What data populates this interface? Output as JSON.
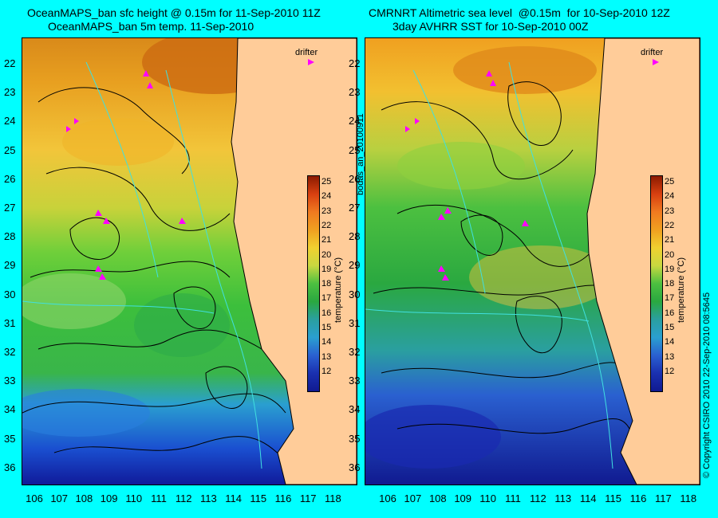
{
  "left_panel": {
    "title_line1": "OceanMAPS_ban sfc height @ 0.15m for 11-Sep-2010 11Z",
    "title_line2": "OceanMAPS_ban 5m temp. 11-Sep-2010",
    "drifter_label": "drifter"
  },
  "right_panel": {
    "title_line1": "CMRNRT Altimetric sea level  @0.15m  for 10-Sep-2010 12Z",
    "title_line2": "3day AVHRR SST for 10-Sep-2010 00Z",
    "drifter_label": "drifter"
  },
  "colorbar": {
    "label": "temperature (°C)",
    "ticks": [
      "25",
      "24",
      "23",
      "22",
      "21",
      "20",
      "19",
      "18",
      "17",
      "16",
      "15",
      "14",
      "13",
      "12"
    ]
  },
  "y_ticks": [
    "22",
    "23",
    "24",
    "25",
    "26",
    "27",
    "28",
    "29",
    "30",
    "31",
    "32",
    "33",
    "34",
    "35",
    "36"
  ],
  "x_ticks": [
    "106",
    "107",
    "108",
    "109",
    "110",
    "111",
    "112",
    "113",
    "114",
    "115",
    "116",
    "117",
    "118"
  ],
  "side_text": {
    "left_of_right_panel": "bodas_an_20100911",
    "right_edge": "© Copyright CSIRO 2010   22-Sep-2010 08:5645"
  },
  "colors": {
    "background": "#00ffff",
    "land": "#ffcc99",
    "drifter": "#ff00ff"
  }
}
